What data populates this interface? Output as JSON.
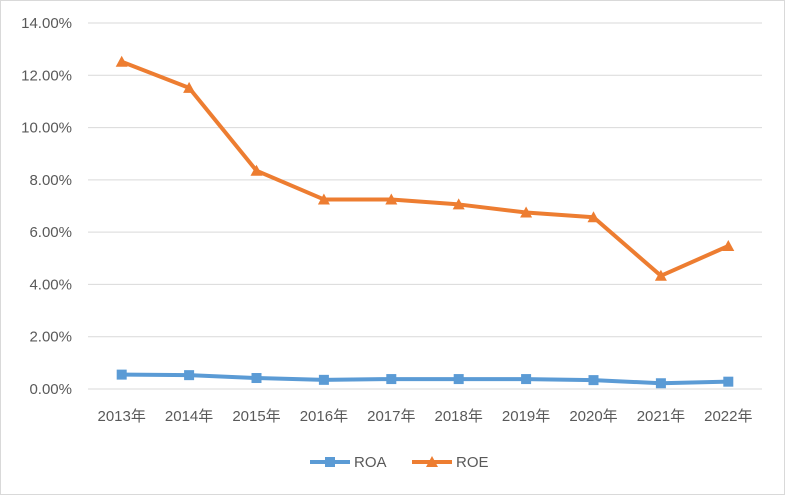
{
  "chart_data": {
    "type": "line",
    "title": "",
    "xlabel": "",
    "ylabel": "",
    "categories": [
      "2013年",
      "2014年",
      "2015年",
      "2016年",
      "2017年",
      "2018年",
      "2019年",
      "2020年",
      "2021年",
      "2022年"
    ],
    "ylim": [
      0,
      14
    ],
    "yticks": [
      0,
      2,
      4,
      6,
      8,
      10,
      12,
      14
    ],
    "ytick_labels": [
      "0.00%",
      "2.00%",
      "4.00%",
      "6.00%",
      "8.00%",
      "10.00%",
      "12.00%",
      "14.00%"
    ],
    "grid": true,
    "legend_position": "bottom",
    "series": [
      {
        "name": "ROA",
        "color": "#5b9bd5",
        "marker": "square",
        "values": [
          0.55,
          0.53,
          0.42,
          0.35,
          0.38,
          0.38,
          0.38,
          0.34,
          0.22,
          0.28
        ]
      },
      {
        "name": "ROE",
        "color": "#ed7d31",
        "marker": "triangle",
        "values": [
          12.52,
          11.52,
          8.35,
          7.25,
          7.25,
          7.06,
          6.75,
          6.57,
          4.33,
          5.47
        ]
      }
    ]
  }
}
